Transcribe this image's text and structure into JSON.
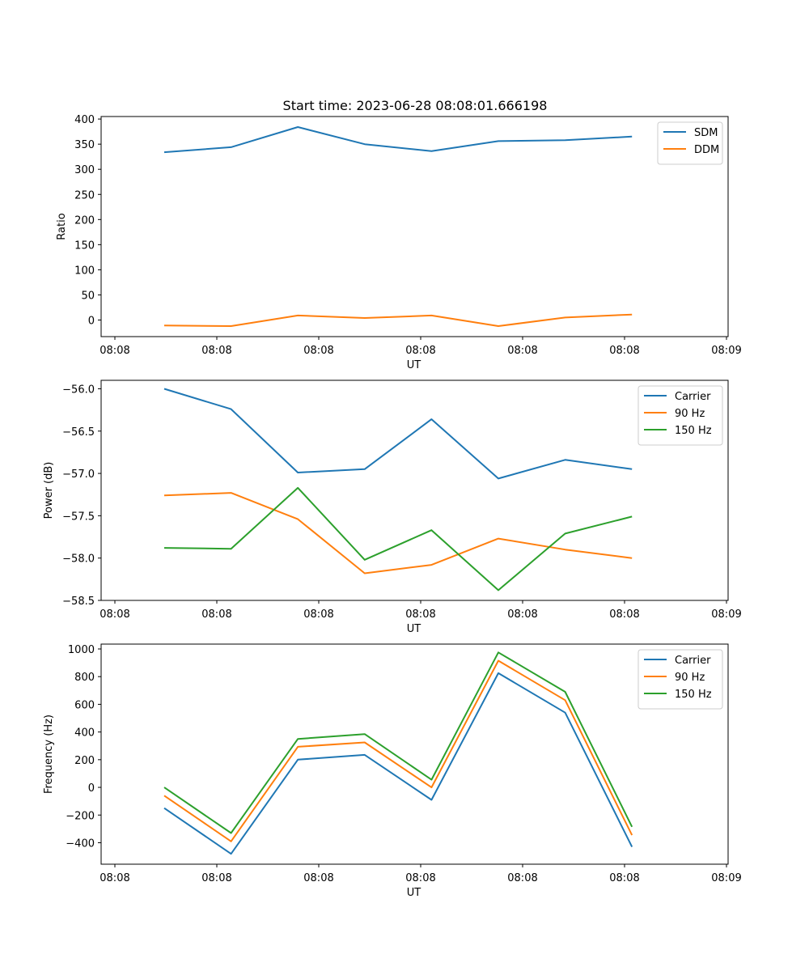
{
  "figure": {
    "title": "Start time: 2023-06-28 08:08:01.666198"
  },
  "chart_data": [
    {
      "type": "line",
      "xlabel": "UT",
      "ylabel": "Ratio",
      "x_tick_labels": [
        "08:08",
        "08:08",
        "08:08",
        "08:08",
        "08:08",
        "08:08",
        "08:08"
      ],
      "x_end_tick_label": "08:09",
      "x_points": 8,
      "ylim": [
        -33,
        405
      ],
      "yticks": [
        0,
        50,
        100,
        150,
        200,
        250,
        300,
        350,
        400
      ],
      "legend": "top-right",
      "grid": false,
      "series": [
        {
          "name": "SDM",
          "color": "#1f77b4",
          "values": [
            334,
            344,
            384,
            350,
            336,
            356,
            358,
            365
          ]
        },
        {
          "name": "DDM",
          "color": "#ff7f0e",
          "values": [
            -11,
            -12,
            9,
            4,
            9,
            -12,
            5,
            11
          ]
        }
      ]
    },
    {
      "type": "line",
      "xlabel": "UT",
      "ylabel": "Power (dB)",
      "x_tick_labels": [
        "08:08",
        "08:08",
        "08:08",
        "08:08",
        "08:08",
        "08:08",
        "08:08"
      ],
      "x_end_tick_label": "08:09",
      "x_points": 8,
      "ylim": [
        -58.5,
        -55.9
      ],
      "yticks": [
        -58.5,
        -58.0,
        -57.5,
        -57.0,
        -56.5,
        -56.0
      ],
      "legend": "top-right",
      "grid": false,
      "series": [
        {
          "name": "Carrier",
          "color": "#1f77b4",
          "values": [
            -56.0,
            -56.24,
            -56.99,
            -56.95,
            -56.36,
            -57.06,
            -56.84,
            -56.95
          ]
        },
        {
          "name": "90 Hz",
          "color": "#ff7f0e",
          "values": [
            -57.26,
            -57.23,
            -57.54,
            -58.18,
            -58.08,
            -57.77,
            -57.9,
            -58.0
          ]
        },
        {
          "name": "150 Hz",
          "color": "#2ca02c",
          "values": [
            -57.88,
            -57.89,
            -57.17,
            -58.02,
            -57.67,
            -58.38,
            -57.71,
            -57.51
          ]
        }
      ]
    },
    {
      "type": "line",
      "xlabel": "UT",
      "ylabel": "Frequency (Hz)",
      "x_tick_labels": [
        "08:08",
        "08:08",
        "08:08",
        "08:08",
        "08:08",
        "08:08",
        "08:08"
      ],
      "x_end_tick_label": "08:09",
      "x_points": 8,
      "ylim": [
        -555,
        1035
      ],
      "yticks": [
        -400,
        -200,
        0,
        200,
        400,
        600,
        800,
        1000
      ],
      "legend": "top-right",
      "grid": false,
      "series": [
        {
          "name": "Carrier",
          "color": "#1f77b4",
          "values": [
            -150,
            -480,
            200,
            235,
            -90,
            825,
            540,
            -430
          ]
        },
        {
          "name": "90 Hz",
          "color": "#ff7f0e",
          "values": [
            -60,
            -390,
            293,
            325,
            0,
            915,
            630,
            -345
          ]
        },
        {
          "name": "150 Hz",
          "color": "#2ca02c",
          "values": [
            0,
            -330,
            350,
            385,
            55,
            975,
            690,
            -285
          ]
        }
      ]
    }
  ]
}
